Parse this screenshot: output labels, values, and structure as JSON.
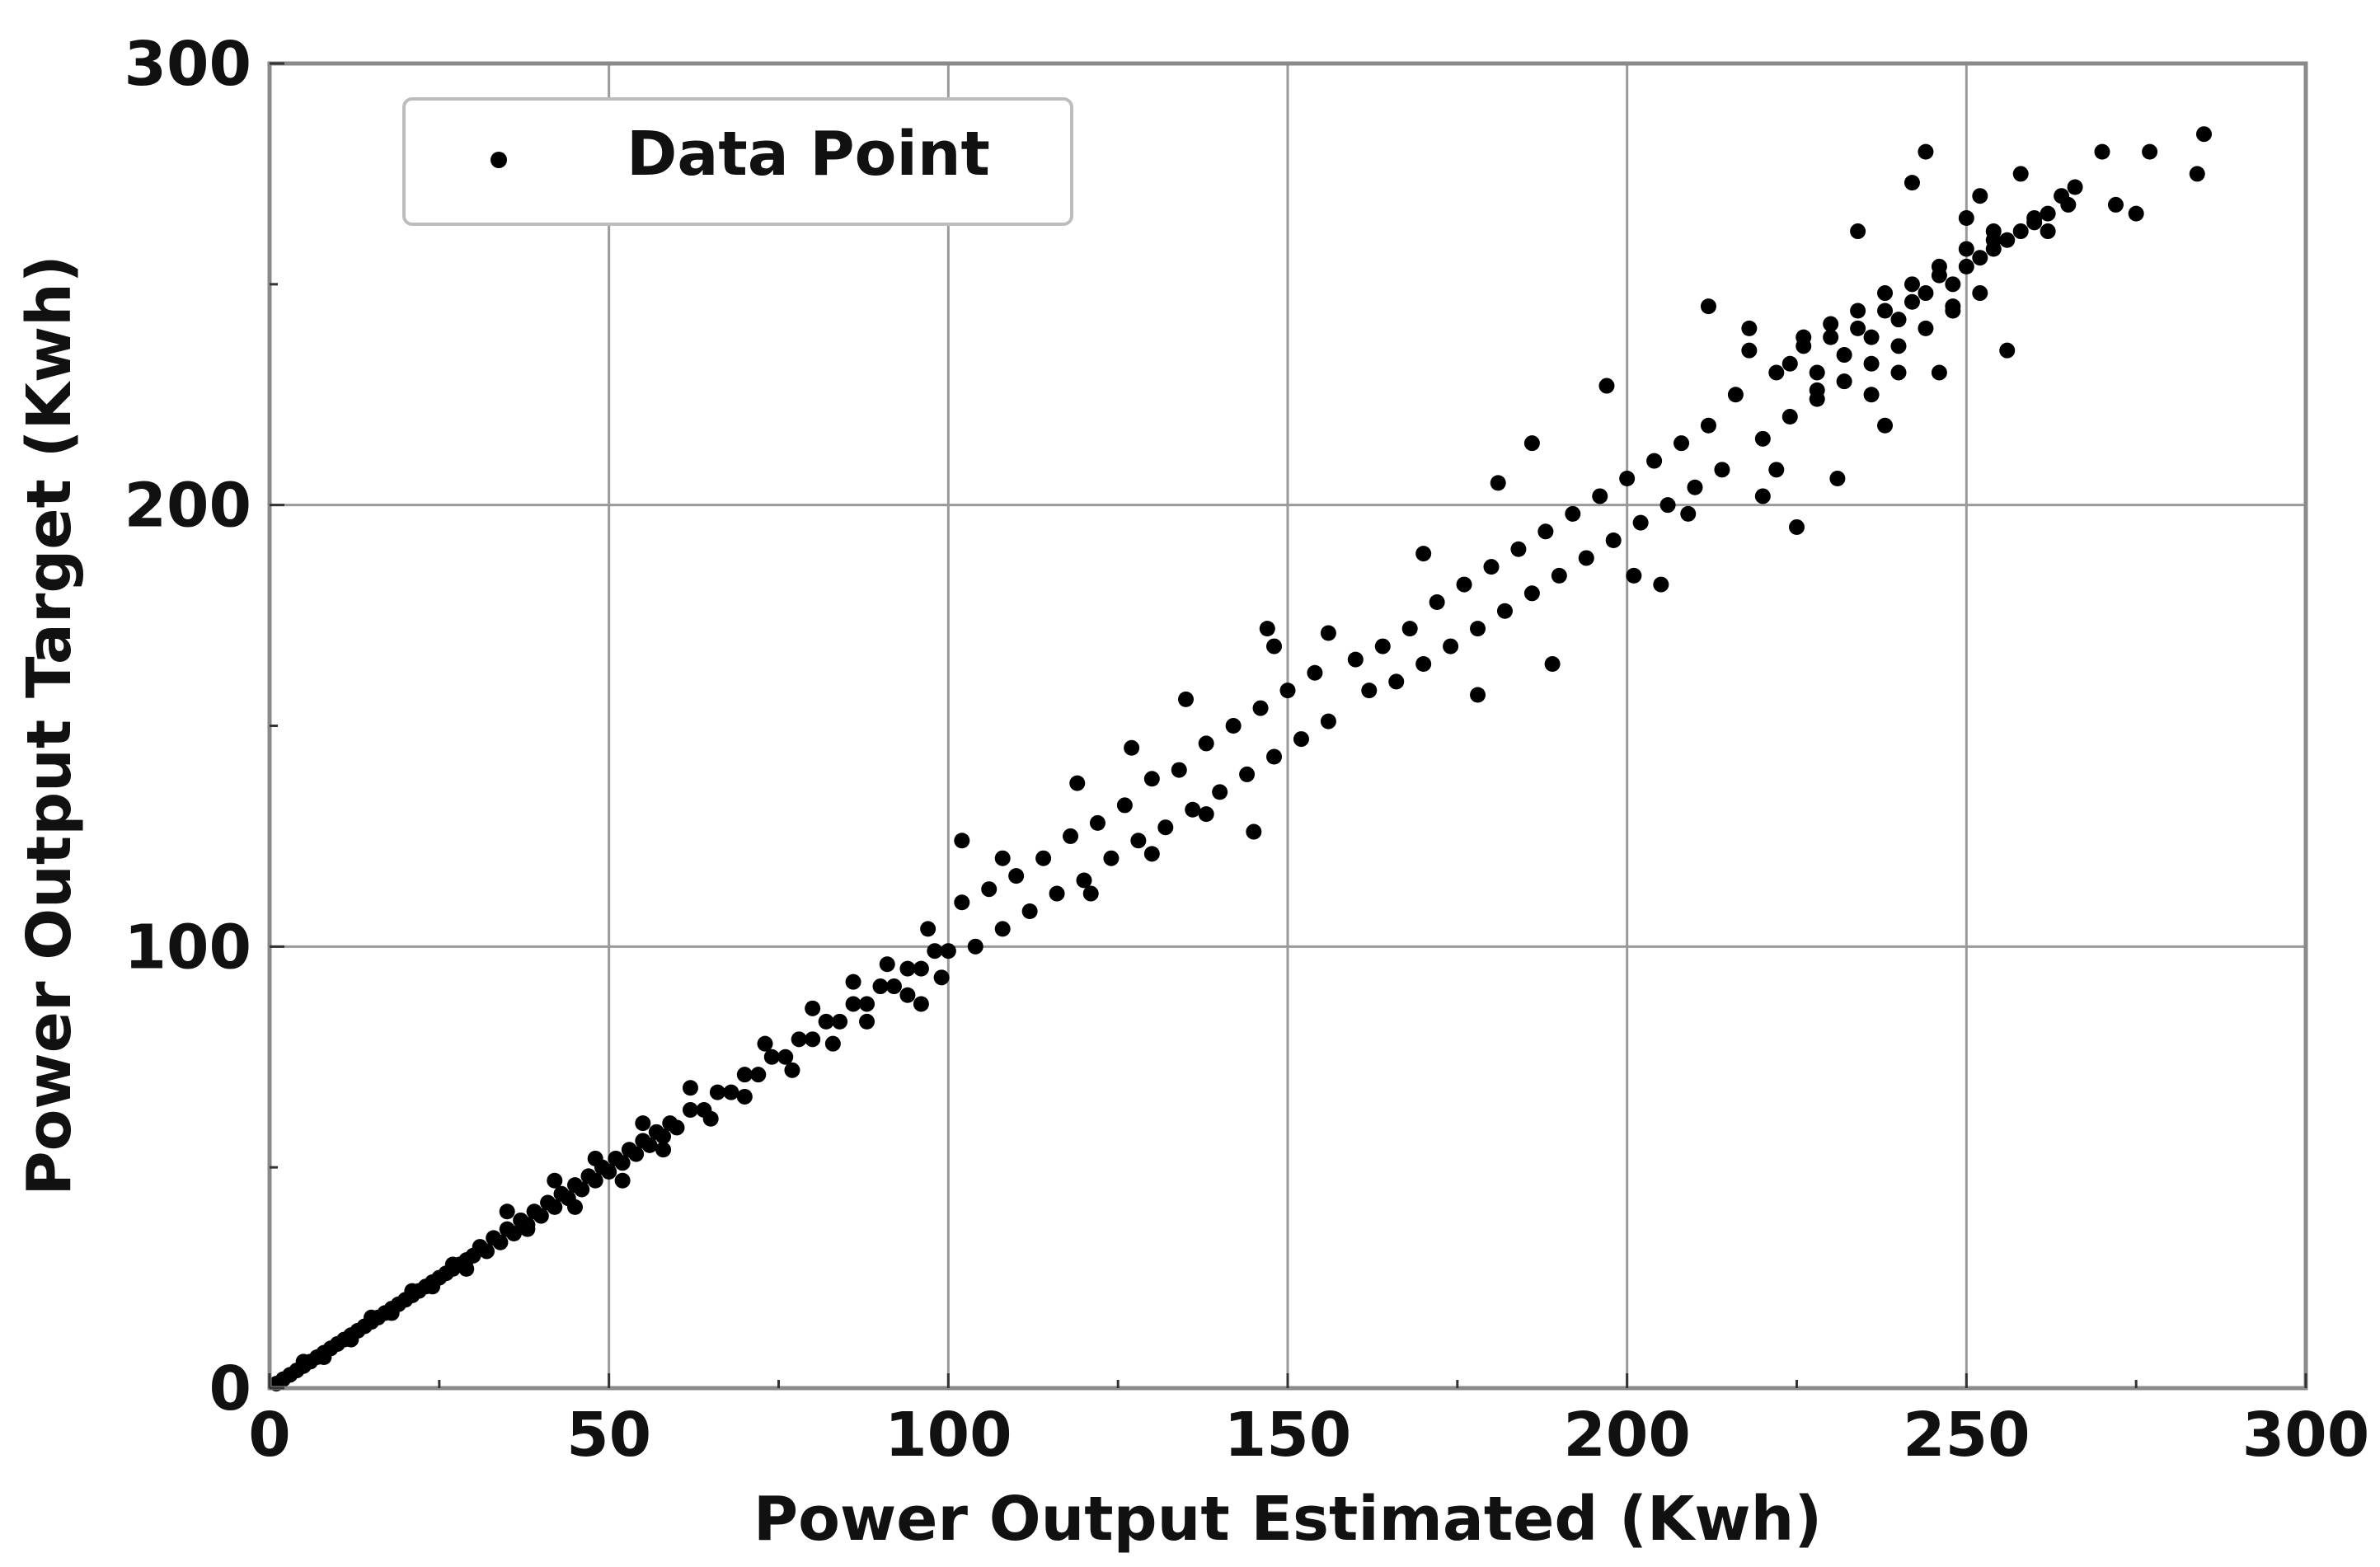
{
  "chart_data": {
    "type": "scatter",
    "title": "",
    "xlabel": "Power Output Estimated (Kwh)",
    "ylabel": "Power Output Target (Kwh)",
    "xlim": [
      0,
      300
    ],
    "ylim": [
      0,
      300
    ],
    "x_ticks": [
      0,
      50,
      100,
      150,
      200,
      250,
      300
    ],
    "y_ticks": [
      0,
      100,
      200,
      300
    ],
    "x_tick_labels": [
      "0",
      "50",
      "100",
      "150",
      "200",
      "250",
      "300"
    ],
    "y_tick_labels": [
      "0",
      "100",
      "200",
      "300"
    ],
    "grid": true,
    "legend": {
      "position": "top-left",
      "entries": [
        "Data Point"
      ]
    },
    "marker_color": "#000000",
    "series": [
      {
        "name": "Data Point",
        "points": [
          [
            1,
            1
          ],
          [
            2,
            2
          ],
          [
            3,
            3
          ],
          [
            4,
            4
          ],
          [
            5,
            5
          ],
          [
            6,
            6
          ],
          [
            7,
            7
          ],
          [
            8,
            8
          ],
          [
            9,
            9
          ],
          [
            10,
            10
          ],
          [
            11,
            11
          ],
          [
            12,
            12
          ],
          [
            13,
            13
          ],
          [
            14,
            14
          ],
          [
            15,
            15
          ],
          [
            16,
            16
          ],
          [
            17,
            17
          ],
          [
            18,
            18
          ],
          [
            19,
            19
          ],
          [
            20,
            20
          ],
          [
            21,
            21
          ],
          [
            22,
            22
          ],
          [
            23,
            23
          ],
          [
            24,
            24
          ],
          [
            25,
            25
          ],
          [
            26,
            26
          ],
          [
            27,
            27
          ],
          [
            28,
            28
          ],
          [
            29,
            29
          ],
          [
            30,
            30
          ],
          [
            5,
            6
          ],
          [
            8,
            7
          ],
          [
            12,
            11
          ],
          [
            15,
            16
          ],
          [
            18,
            17
          ],
          [
            21,
            22
          ],
          [
            24,
            23
          ],
          [
            27,
            28
          ],
          [
            29,
            27
          ],
          [
            31,
            32
          ],
          [
            32,
            31
          ],
          [
            33,
            34
          ],
          [
            34,
            33
          ],
          [
            35,
            36
          ],
          [
            36,
            35
          ],
          [
            37,
            38
          ],
          [
            38,
            37
          ],
          [
            39,
            40
          ],
          [
            40,
            39
          ],
          [
            41,
            42
          ],
          [
            42,
            41
          ],
          [
            43,
            44
          ],
          [
            44,
            43
          ],
          [
            45,
            46
          ],
          [
            46,
            45
          ],
          [
            47,
            48
          ],
          [
            48,
            47
          ],
          [
            49,
            50
          ],
          [
            50,
            49
          ],
          [
            51,
            52
          ],
          [
            52,
            51
          ],
          [
            53,
            54
          ],
          [
            54,
            53
          ],
          [
            55,
            56
          ],
          [
            56,
            55
          ],
          [
            57,
            58
          ],
          [
            58,
            57
          ],
          [
            59,
            60
          ],
          [
            60,
            59
          ],
          [
            62,
            63
          ],
          [
            64,
            63
          ],
          [
            66,
            67
          ],
          [
            68,
            67
          ],
          [
            70,
            71
          ],
          [
            72,
            71
          ],
          [
            74,
            75
          ],
          [
            76,
            75
          ],
          [
            78,
            79
          ],
          [
            80,
            79
          ],
          [
            82,
            83
          ],
          [
            84,
            83
          ],
          [
            86,
            87
          ],
          [
            88,
            87
          ],
          [
            90,
            91
          ],
          [
            92,
            91
          ],
          [
            94,
            95
          ],
          [
            96,
            95
          ],
          [
            98,
            99
          ],
          [
            100,
            99
          ],
          [
            35,
            40
          ],
          [
            38,
            36
          ],
          [
            42,
            47
          ],
          [
            45,
            41
          ],
          [
            48,
            52
          ],
          [
            52,
            47
          ],
          [
            55,
            60
          ],
          [
            58,
            54
          ],
          [
            62,
            68
          ],
          [
            65,
            61
          ],
          [
            70,
            66
          ],
          [
            73,
            78
          ],
          [
            77,
            72
          ],
          [
            80,
            86
          ],
          [
            83,
            78
          ],
          [
            86,
            92
          ],
          [
            88,
            83
          ],
          [
            91,
            96
          ],
          [
            94,
            89
          ],
          [
            97,
            104
          ],
          [
            96,
            87
          ],
          [
            99,
            93
          ],
          [
            102,
            110
          ],
          [
            104,
            100
          ],
          [
            106,
            113
          ],
          [
            108,
            104
          ],
          [
            110,
            116
          ],
          [
            112,
            108
          ],
          [
            114,
            120
          ],
          [
            116,
            112
          ],
          [
            118,
            125
          ],
          [
            120,
            115
          ],
          [
            122,
            128
          ],
          [
            124,
            120
          ],
          [
            126,
            132
          ],
          [
            128,
            124
          ],
          [
            130,
            138
          ],
          [
            132,
            127
          ],
          [
            134,
            140
          ],
          [
            136,
            131
          ],
          [
            138,
            146
          ],
          [
            140,
            135
          ],
          [
            142,
            150
          ],
          [
            144,
            139
          ],
          [
            146,
            154
          ],
          [
            148,
            143
          ],
          [
            150,
            158
          ],
          [
            152,
            147
          ],
          [
            154,
            162
          ],
          [
            156,
            151
          ],
          [
            102,
            124
          ],
          [
            108,
            120
          ],
          [
            119,
            137
          ],
          [
            127,
            145
          ],
          [
            121,
            112
          ],
          [
            130,
            121
          ],
          [
            135,
            156
          ],
          [
            138,
            130
          ],
          [
            145,
            126
          ],
          [
            147,
            172
          ],
          [
            148,
            168
          ],
          [
            156,
            171
          ],
          [
            160,
            165
          ],
          [
            162,
            158
          ],
          [
            164,
            168
          ],
          [
            166,
            160
          ],
          [
            168,
            172
          ],
          [
            170,
            164
          ],
          [
            172,
            178
          ],
          [
            174,
            168
          ],
          [
            176,
            182
          ],
          [
            178,
            172
          ],
          [
            180,
            186
          ],
          [
            182,
            176
          ],
          [
            184,
            190
          ],
          [
            186,
            180
          ],
          [
            188,
            194
          ],
          [
            190,
            184
          ],
          [
            192,
            198
          ],
          [
            194,
            188
          ],
          [
            196,
            202
          ],
          [
            198,
            192
          ],
          [
            200,
            206
          ],
          [
            202,
            196
          ],
          [
            204,
            210
          ],
          [
            206,
            200
          ],
          [
            208,
            214
          ],
          [
            210,
            204
          ],
          [
            212,
            218
          ],
          [
            214,
            208
          ],
          [
            170,
            189
          ],
          [
            178,
            157
          ],
          [
            181,
            205
          ],
          [
            186,
            214
          ],
          [
            189,
            164
          ],
          [
            197,
            227
          ],
          [
            201,
            184
          ],
          [
            205,
            182
          ],
          [
            209,
            198
          ],
          [
            212,
            245
          ],
          [
            216,
            225
          ],
          [
            218,
            235
          ],
          [
            220,
            215
          ],
          [
            222,
            230
          ],
          [
            224,
            220
          ],
          [
            226,
            238
          ],
          [
            228,
            224
          ],
          [
            230,
            241
          ],
          [
            232,
            228
          ],
          [
            234,
            244
          ],
          [
            236,
            232
          ],
          [
            238,
            248
          ],
          [
            240,
            236
          ],
          [
            242,
            250
          ],
          [
            244,
            240
          ],
          [
            246,
            254
          ],
          [
            248,
            244
          ],
          [
            250,
            258
          ],
          [
            252,
            248
          ],
          [
            254,
            262
          ],
          [
            218,
            240
          ],
          [
            220,
            202
          ],
          [
            222,
            208
          ],
          [
            225,
            195
          ],
          [
            228,
            226
          ],
          [
            231,
            206
          ],
          [
            234,
            262
          ],
          [
            236,
            225
          ],
          [
            238,
            218
          ],
          [
            240,
            230
          ],
          [
            242,
            273
          ],
          [
            244,
            280
          ],
          [
            246,
            230
          ],
          [
            248,
            245
          ],
          [
            250,
            265
          ],
          [
            252,
            270
          ],
          [
            254,
            260
          ],
          [
            256,
            235
          ],
          [
            258,
            275
          ],
          [
            260,
            265
          ],
          [
            224,
            232
          ],
          [
            226,
            236
          ],
          [
            228,
            230
          ],
          [
            230,
            238
          ],
          [
            232,
            234
          ],
          [
            234,
            240
          ],
          [
            236,
            238
          ],
          [
            238,
            244
          ],
          [
            240,
            242
          ],
          [
            242,
            246
          ],
          [
            244,
            248
          ],
          [
            246,
            252
          ],
          [
            248,
            250
          ],
          [
            250,
            254
          ],
          [
            252,
            256
          ],
          [
            254,
            258
          ],
          [
            256,
            260
          ],
          [
            258,
            262
          ],
          [
            260,
            264
          ],
          [
            262,
            266
          ],
          [
            264,
            270
          ],
          [
            266,
            272
          ],
          [
            270,
            280
          ],
          [
            272,
            268
          ],
          [
            275,
            266
          ],
          [
            277,
            280
          ],
          [
            284,
            275
          ],
          [
            285,
            284
          ],
          [
            262,
            262
          ],
          [
            265,
            268
          ]
        ]
      }
    ]
  }
}
